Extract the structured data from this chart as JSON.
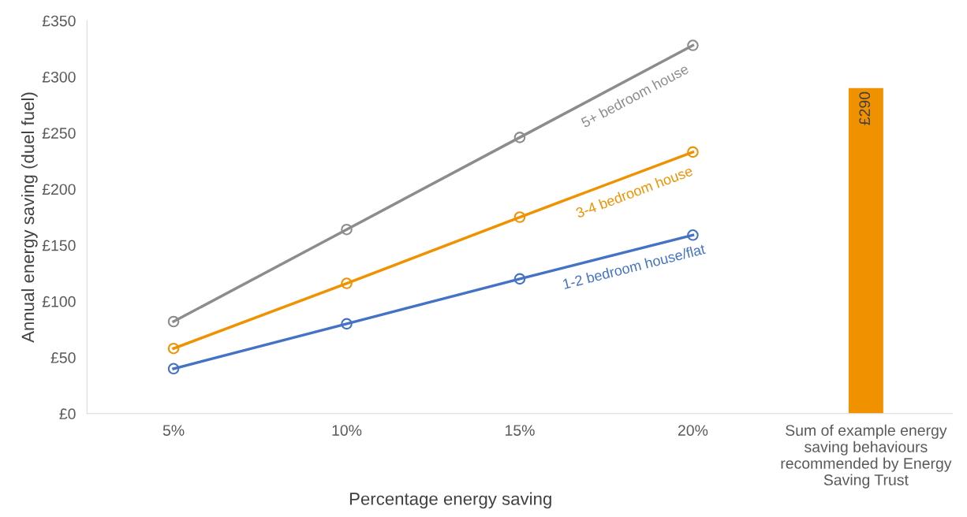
{
  "chart_data": {
    "type": "line",
    "xlabel": "Percentage energy saving",
    "ylabel": "Annual energy saving (duel fuel)",
    "categories": [
      "5%",
      "10%",
      "15%",
      "20%",
      "Sum of example energy saving behaviours recommended by Energy Saving Trust"
    ],
    "series": [
      {
        "name": "1-2 bedroom house/flat",
        "color": "#4472c4",
        "values": [
          40,
          80,
          120,
          159,
          null
        ]
      },
      {
        "name": "3-4 bedroom house",
        "color": "#f09100",
        "values": [
          58,
          116,
          175,
          233,
          null
        ]
      },
      {
        "name": "5+ bedroom house",
        "color": "#8c8c8c",
        "values": [
          82,
          164,
          246,
          328,
          null
        ]
      },
      {
        "type": "bar",
        "color": "#f09100",
        "values": [
          null,
          null,
          null,
          null,
          290
        ],
        "value_labels": [
          null,
          null,
          null,
          null,
          "£290"
        ]
      }
    ],
    "ylim": [
      0,
      350
    ],
    "yticks": [
      {
        "value": 0,
        "label": "£0"
      },
      {
        "value": 50,
        "label": "£50"
      },
      {
        "value": 100,
        "label": "£100"
      },
      {
        "value": 150,
        "label": "£150"
      },
      {
        "value": 200,
        "label": "£200"
      },
      {
        "value": 250,
        "label": "£250"
      },
      {
        "value": 300,
        "label": "£300"
      },
      {
        "value": 350,
        "label": "£350"
      }
    ],
    "marker": "circle",
    "line_style": "solid",
    "grid": false,
    "legend": false
  }
}
